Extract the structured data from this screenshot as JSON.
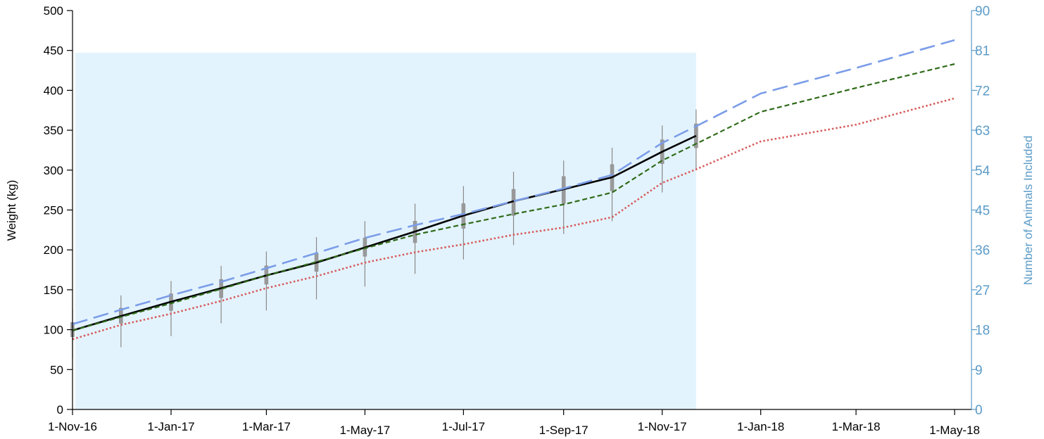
{
  "chart_data": {
    "type": "line",
    "title": "",
    "x_axis": {
      "label": "",
      "ticks": [
        "1-Nov-16",
        "1-Jan-17",
        "1-Mar-17",
        "1-May-17",
        "1-Jul-17",
        "1-Sep-17",
        "1-Nov-17",
        "1-Jan-18",
        "1-Mar-18",
        "1-May-18"
      ],
      "tick_dates": [
        "2016-11-01",
        "2017-01-01",
        "2017-03-01",
        "2017-05-01",
        "2017-07-01",
        "2017-09-01",
        "2017-11-01",
        "2018-01-01",
        "2018-03-01",
        "2018-05-01"
      ],
      "range": [
        "2016-11-01",
        "2018-05-01"
      ]
    },
    "y_axis_left": {
      "label": "Weight (kg)",
      "ticks": [
        "0",
        "50",
        "100",
        "150",
        "200",
        "250",
        "300",
        "350",
        "400",
        "450",
        "500"
      ],
      "range": [
        0,
        500
      ]
    },
    "y_axis_right": {
      "label": "Number of Animals Included",
      "ticks": [
        "0",
        "9",
        "18",
        "27",
        "36",
        "45",
        "54",
        "63",
        "72",
        "81",
        "90"
      ],
      "range": [
        0,
        90
      ],
      "color": "#5b9bc8",
      "shaded_region": {
        "start": "2016-11-01",
        "end": "2017-11-22",
        "value": 80.5,
        "color": "#e3f3fd"
      }
    },
    "grid": false,
    "legend": "none",
    "series": [
      {
        "style": "solid",
        "color": "#000000",
        "x": [
          "2016-11-01",
          "2016-12-01",
          "2017-01-01",
          "2017-02-01",
          "2017-03-01",
          "2017-04-01",
          "2017-05-01",
          "2017-06-01",
          "2017-07-01",
          "2017-08-01",
          "2017-09-01",
          "2017-10-01",
          "2017-11-01",
          "2017-11-22"
        ],
        "y": [
          99,
          117,
          135,
          152,
          168,
          184,
          203,
          223,
          243,
          261,
          276,
          291,
          323,
          343
        ]
      },
      {
        "style": "long-dash",
        "color": "#7b9de8",
        "x": [
          "2016-11-01",
          "2016-12-01",
          "2017-01-01",
          "2017-02-01",
          "2017-03-01",
          "2017-04-01",
          "2017-05-01",
          "2017-06-01",
          "2017-07-01",
          "2017-08-01",
          "2017-09-01",
          "2017-10-01",
          "2017-11-01",
          "2017-11-22",
          "2018-01-01",
          "2018-03-01",
          "2018-05-01"
        ],
        "y": [
          107,
          125,
          143,
          160,
          177,
          196,
          215,
          231,
          245,
          261,
          277,
          294,
          334,
          355,
          396,
          428,
          463
        ]
      },
      {
        "style": "short-dash",
        "color": "#2f6b19",
        "x": [
          "2016-11-01",
          "2016-12-01",
          "2017-01-01",
          "2017-02-01",
          "2017-03-01",
          "2017-04-01",
          "2017-05-01",
          "2017-06-01",
          "2017-07-01",
          "2017-08-01",
          "2017-09-01",
          "2017-10-01",
          "2017-11-01",
          "2017-11-22",
          "2018-01-01",
          "2018-03-01",
          "2018-05-01"
        ],
        "y": [
          99,
          116,
          133,
          151,
          168,
          185,
          202,
          219,
          232,
          245,
          257,
          272,
          312,
          333,
          373,
          403,
          433
        ]
      },
      {
        "style": "dotted",
        "color": "#d65c5c",
        "x": [
          "2016-11-01",
          "2016-12-01",
          "2017-01-01",
          "2017-02-01",
          "2017-03-01",
          "2017-04-01",
          "2017-05-01",
          "2017-06-01",
          "2017-07-01",
          "2017-08-01",
          "2017-09-01",
          "2017-10-01",
          "2017-11-01",
          "2017-11-22",
          "2018-01-01",
          "2018-03-01",
          "2018-05-01"
        ],
        "y": [
          88,
          106,
          120,
          136,
          152,
          167,
          184,
          197,
          207,
          219,
          228,
          241,
          284,
          301,
          336,
          357,
          390
        ]
      }
    ],
    "ranges": {
      "style": "boxplot",
      "color": "#888888",
      "x": [
        "2016-11-01",
        "2016-12-01",
        "2017-01-01",
        "2017-02-01",
        "2017-03-01",
        "2017-04-01",
        "2017-05-01",
        "2017-06-01",
        "2017-07-01",
        "2017-08-01",
        "2017-09-01",
        "2017-10-01",
        "2017-11-01",
        "2017-11-22"
      ],
      "median": [
        99,
        117,
        135,
        152,
        168,
        184,
        203,
        223,
        243,
        261,
        276,
        291,
        323,
        343
      ],
      "q1": [
        91,
        108,
        124,
        140,
        157,
        173,
        192,
        209,
        227,
        243,
        258,
        274,
        308,
        328
      ],
      "q3": [
        109,
        127,
        145,
        163,
        180,
        196,
        215,
        236,
        258,
        276,
        292,
        307,
        338,
        358
      ],
      "min": [
        64,
        78,
        92,
        108,
        124,
        138,
        154,
        170,
        188,
        206,
        220,
        236,
        272,
        300
      ],
      "max": [
        126,
        143,
        161,
        180,
        198,
        216,
        236,
        258,
        280,
        298,
        312,
        328,
        356,
        376
      ]
    }
  }
}
